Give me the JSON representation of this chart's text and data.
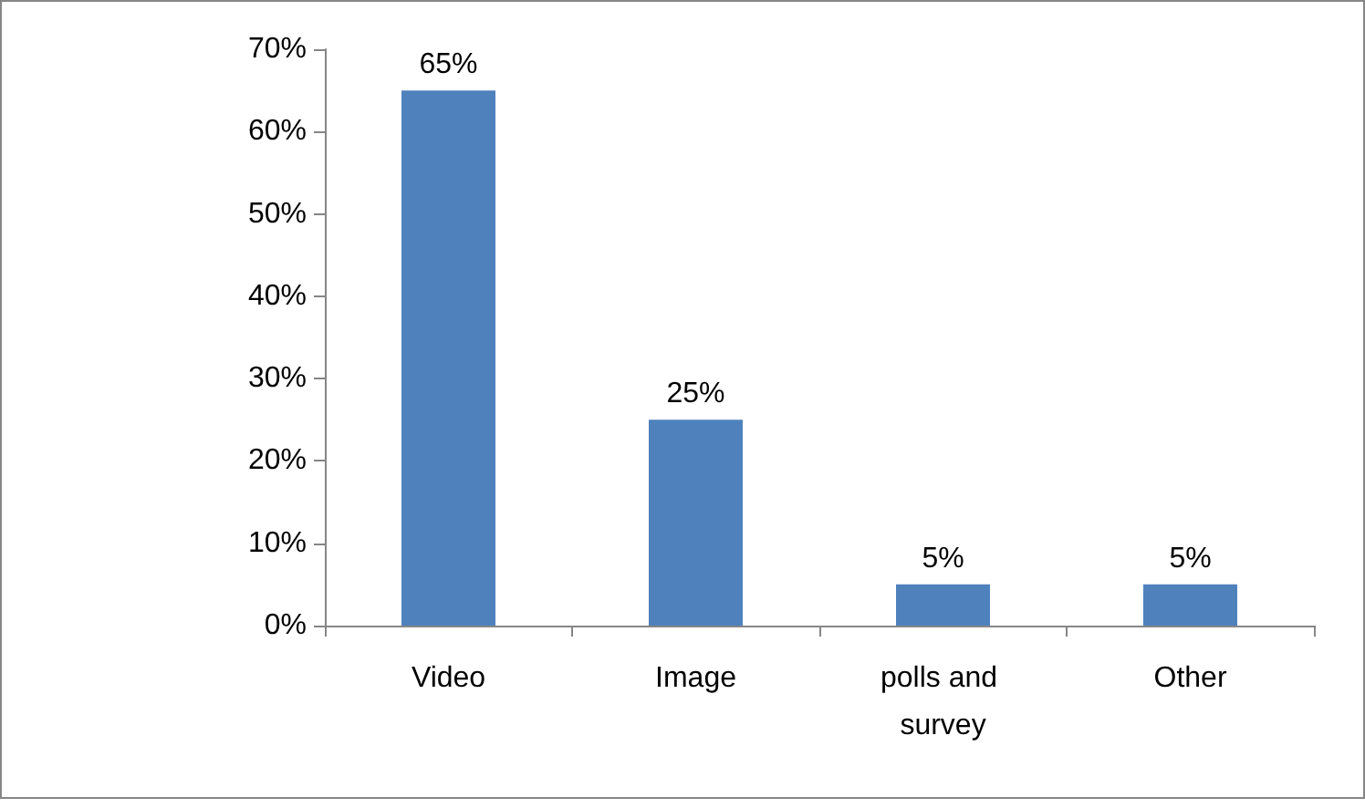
{
  "chart_data": {
    "type": "bar",
    "categories": [
      "Video",
      "Image",
      "polls and survey",
      "Other"
    ],
    "values": [
      65,
      25,
      5,
      5
    ],
    "value_labels": [
      "65%",
      "25%",
      "5%",
      "5%"
    ],
    "color": "#4f81bd",
    "ylim": [
      0,
      70
    ],
    "yticks": [
      {
        "value": 0,
        "label": "0%"
      },
      {
        "value": 10,
        "label": "10%"
      },
      {
        "value": 20,
        "label": "20%"
      },
      {
        "value": 30,
        "label": "30%"
      },
      {
        "value": 40,
        "label": "40%"
      },
      {
        "value": 50,
        "label": "50%"
      },
      {
        "value": 60,
        "label": "60%"
      },
      {
        "value": 70,
        "label": "70%"
      }
    ],
    "grid": false
  }
}
